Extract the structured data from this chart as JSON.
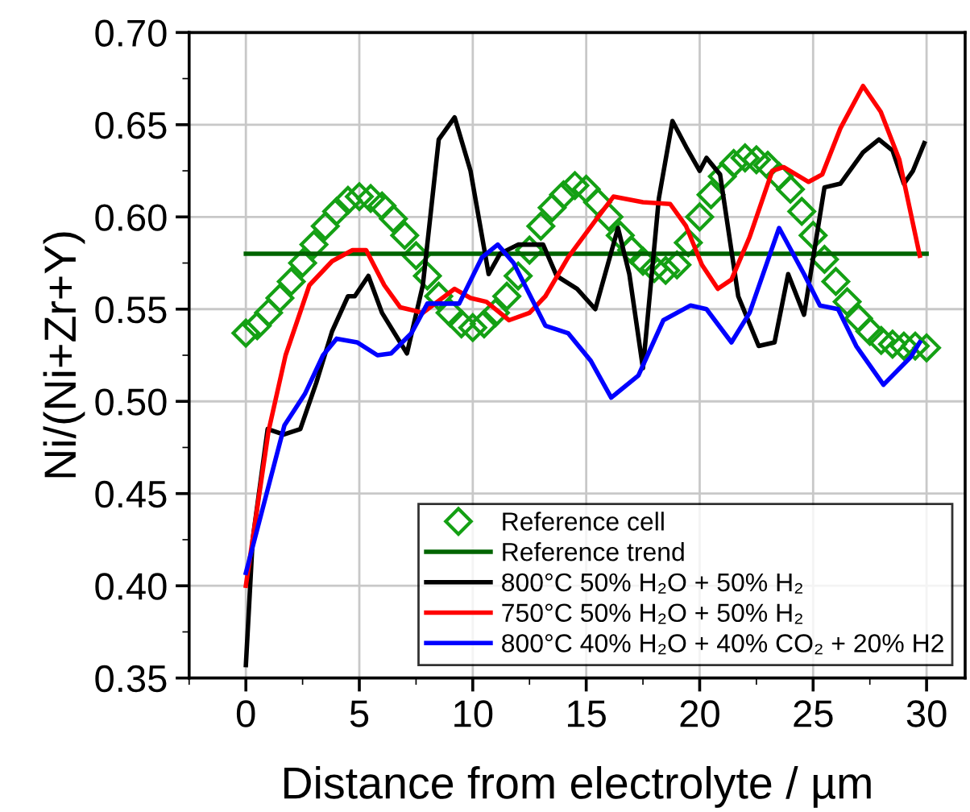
{
  "chart_data": {
    "type": "line",
    "xlabel": "Distance from electrolyte / µm",
    "ylabel": "Ni/(Ni+Zr+Y)",
    "xlim": [
      -2.5,
      31.7
    ],
    "xticks": [
      0,
      5,
      10,
      15,
      20,
      25,
      30
    ],
    "ylim": [
      0.35,
      0.7
    ],
    "yticks": [
      {
        "value": 0.35,
        "label": "0.35"
      },
      {
        "value": 0.4,
        "label": "0.40"
      },
      {
        "value": 0.45,
        "label": "0.45"
      },
      {
        "value": 0.5,
        "label": "0.50"
      },
      {
        "value": 0.55,
        "label": "0.55"
      },
      {
        "value": 0.6,
        "label": "0.60"
      },
      {
        "value": 0.65,
        "label": "0.65"
      },
      {
        "value": 0.7,
        "label": "0.70"
      }
    ],
    "grid": true,
    "legend": "bottom right",
    "series": [
      {
        "name": "Reference cell",
        "type": "scatter",
        "marker": "diamond",
        "color": "#14a014",
        "x": [
          0,
          0.5,
          1,
          1.5,
          2,
          2.5,
          3,
          3.5,
          4,
          4.5,
          5,
          5.5,
          6,
          6.5,
          7,
          7.5,
          8,
          8.5,
          9,
          9.5,
          10,
          10.5,
          11,
          11.5,
          12,
          12.5,
          13,
          13.5,
          14,
          14.5,
          15,
          15.5,
          16,
          16.5,
          17,
          17.5,
          18,
          18.5,
          19,
          19.5,
          20,
          20.5,
          21,
          21.5,
          22,
          22.5,
          23,
          23.5,
          24,
          24.5,
          25,
          25.5,
          26,
          26.5,
          27,
          27.5,
          28,
          28.5,
          29,
          29.5,
          30
        ],
        "values": [
          0.537,
          0.541,
          0.548,
          0.556,
          0.565,
          0.575,
          0.585,
          0.595,
          0.603,
          0.609,
          0.611,
          0.61,
          0.606,
          0.599,
          0.59,
          0.579,
          0.568,
          0.557,
          0.548,
          0.542,
          0.54,
          0.542,
          0.548,
          0.557,
          0.568,
          0.582,
          0.595,
          0.605,
          0.612,
          0.617,
          0.615,
          0.608,
          0.6,
          0.59,
          0.582,
          0.576,
          0.572,
          0.571,
          0.574,
          0.586,
          0.6,
          0.612,
          0.622,
          0.629,
          0.632,
          0.631,
          0.628,
          0.622,
          0.615,
          0.603,
          0.59,
          0.577,
          0.565,
          0.554,
          0.545,
          0.538,
          0.533,
          0.531,
          0.53,
          0.53,
          0.529
        ]
      },
      {
        "name": "Reference trend",
        "color": "#006400",
        "x": [
          0,
          30
        ],
        "values": [
          0.58,
          0.58
        ]
      },
      {
        "name": "800°C 50% H₂O + 50% H₂",
        "color": "#000000",
        "x": [
          0,
          0.3,
          0.96,
          1.67,
          2.4,
          3.1,
          3.8,
          4.5,
          4.8,
          5.4,
          6.0,
          7.1,
          7.8,
          8.5,
          9.2,
          9.9,
          10.7,
          11.2,
          12.0,
          13.1,
          13.7,
          14.6,
          15.4,
          16.4,
          16.9,
          17.5,
          18.2,
          18.8,
          19.4,
          20.0,
          20.3,
          20.9,
          21.7,
          22.6,
          23.3,
          23.9,
          24.6,
          25.5,
          26.2,
          27.2,
          27.9,
          28.5,
          29.0,
          29.4,
          29.9
        ],
        "values": [
          0.357,
          0.425,
          0.485,
          0.482,
          0.485,
          0.51,
          0.538,
          0.557,
          0.557,
          0.568,
          0.548,
          0.526,
          0.563,
          0.642,
          0.654,
          0.625,
          0.569,
          0.58,
          0.585,
          0.585,
          0.568,
          0.561,
          0.55,
          0.594,
          0.569,
          0.518,
          0.61,
          0.652,
          0.638,
          0.625,
          0.632,
          0.623,
          0.557,
          0.53,
          0.532,
          0.569,
          0.547,
          0.616,
          0.618,
          0.635,
          0.642,
          0.636,
          0.618,
          0.625,
          0.64
        ]
      },
      {
        "name": "750°C 50% H₂O + 50% H₂",
        "color": "#ff0000",
        "x": [
          0,
          1.0,
          1.75,
          2.8,
          3.8,
          4.7,
          5.3,
          6.1,
          6.8,
          7.8,
          9.2,
          9.9,
          10.6,
          11.6,
          12.5,
          13.2,
          14.2,
          15.4,
          16.2,
          17.5,
          18.7,
          19.4,
          20.1,
          20.8,
          21.4,
          22.2,
          23.2,
          23.7,
          24.8,
          25.4,
          26.2,
          27.2,
          27.98,
          28.8,
          29.7
        ],
        "values": [
          0.4,
          0.484,
          0.525,
          0.563,
          0.576,
          0.582,
          0.582,
          0.563,
          0.551,
          0.548,
          0.561,
          0.556,
          0.554,
          0.544,
          0.548,
          0.557,
          0.578,
          0.598,
          0.611,
          0.608,
          0.607,
          0.595,
          0.574,
          0.561,
          0.566,
          0.589,
          0.625,
          0.627,
          0.619,
          0.623,
          0.648,
          0.671,
          0.657,
          0.631,
          0.579
        ]
      },
      {
        "name": "800°C 40% H₂O + 40% CO₂ + 20% H2",
        "color": "#0000ff",
        "x": [
          0,
          0.7,
          1.7,
          2.6,
          3.4,
          4.0,
          4.9,
          5.8,
          6.4,
          7.3,
          8.0,
          8.7,
          9.4,
          10.4,
          11.1,
          11.8,
          13.2,
          14.2,
          15.2,
          16.1,
          17.3,
          18.4,
          19.6,
          20.3,
          21.4,
          22.2,
          23.5,
          24.6,
          25.3,
          26.1,
          26.9,
          28.1,
          29.3,
          29.7
        ],
        "values": [
          0.407,
          0.44,
          0.487,
          0.504,
          0.525,
          0.534,
          0.532,
          0.525,
          0.526,
          0.537,
          0.553,
          0.553,
          0.553,
          0.578,
          0.585,
          0.575,
          0.541,
          0.537,
          0.522,
          0.502,
          0.514,
          0.544,
          0.552,
          0.55,
          0.532,
          0.548,
          0.594,
          0.569,
          0.552,
          0.55,
          0.53,
          0.509,
          0.524,
          0.532
        ]
      }
    ]
  }
}
